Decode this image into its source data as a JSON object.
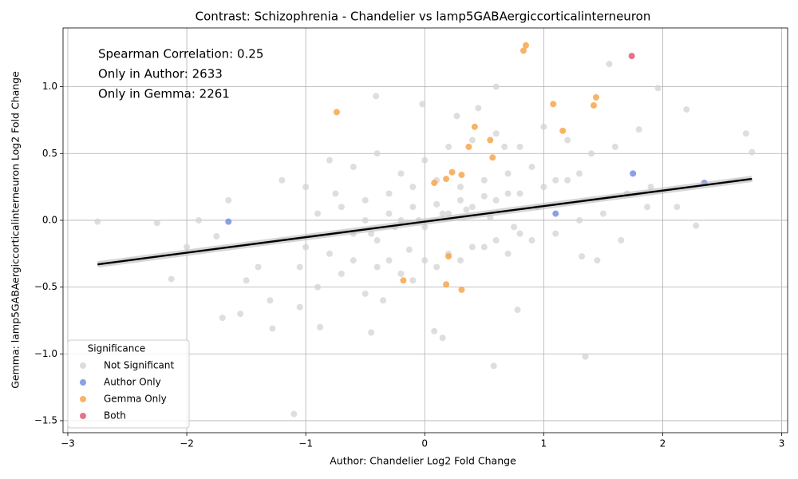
{
  "chart_data": {
    "type": "scatter",
    "title": "Contrast: Schizophrenia - Chandelier vs lamp5GABAergiccorticalinterneuron",
    "x_label": "Author: Chandelier Log2 Fold Change",
    "y_label": "Gemma: lamp5GABAergiccorticalinterneuron Log2 Fold Change",
    "annotations": [
      "Spearman Correlation: 0.25",
      "Only in Author: 2633",
      "Only in Gemma: 2261"
    ],
    "legend_title": "Significance",
    "legend_loc": "lower left",
    "grid": true,
    "xlim": [
      -3.04,
      3.05
    ],
    "ylim": [
      -1.59,
      1.44
    ],
    "xticks": [
      {
        "value": -3,
        "label": "−3"
      },
      {
        "value": -2,
        "label": "−2"
      },
      {
        "value": -1,
        "label": "−1"
      },
      0,
      1,
      2,
      3
    ],
    "yticks": [
      {
        "value": -1.5,
        "label": "−1.5"
      },
      {
        "value": -1,
        "label": "−1.0"
      },
      {
        "value": -0.5,
        "label": "−0.5"
      },
      {
        "value": 0,
        "label": "0.0"
      },
      0.5,
      {
        "value": 1,
        "label": "1.0"
      }
    ],
    "fit": {
      "color": "#000000",
      "x": [
        -2.75,
        2.75
      ],
      "y": [
        -0.33,
        0.31
      ]
    },
    "series": [
      {
        "name": "Not Significant",
        "color": "#d3d3d3",
        "x": [
          -2.75,
          -1.1,
          0.58,
          1.35,
          0.6,
          -0.41,
          1.55,
          1.96,
          2.2,
          2.75,
          2.7,
          -2.13,
          -1.28,
          -0.88,
          2.12,
          -2.25,
          -1.55,
          -1.5,
          -1.75,
          -1.9,
          -2.0,
          -1.65,
          -1.4,
          -1.2,
          -1.0,
          -0.9,
          -0.8,
          -0.7,
          -0.6,
          -0.5,
          -0.4,
          -0.3,
          -0.2,
          -0.1,
          0.0,
          0.1,
          0.2,
          0.3,
          0.4,
          0.5,
          0.6,
          0.7,
          0.8,
          0.9,
          1.0,
          1.1,
          1.2,
          1.3,
          1.4,
          1.5,
          1.6,
          1.7,
          1.8,
          1.9,
          -1.0,
          -0.8,
          -0.6,
          -0.4,
          -0.2,
          0.0,
          0.2,
          0.4,
          0.6,
          0.8,
          1.0,
          1.2,
          -0.9,
          -0.7,
          -0.5,
          -0.3,
          -0.1,
          0.1,
          0.3,
          0.5,
          0.7,
          0.9,
          1.1,
          1.3,
          -0.6,
          -0.4,
          -0.2,
          0.0,
          0.2,
          0.4,
          0.6,
          0.8,
          -0.5,
          -0.3,
          -0.1,
          0.1,
          0.3,
          0.5,
          0.7,
          -0.45,
          -0.25,
          -0.05,
          0.15,
          0.35,
          0.55,
          0.75,
          0.95,
          -0.75,
          -1.05,
          -1.3,
          1.45,
          1.65,
          -0.02,
          0.27,
          -0.45,
          0.08,
          0.45,
          -1.05,
          1.32,
          0.78,
          -0.35,
          0.15,
          -1.7,
          2.28,
          1.87,
          -0.13,
          0.67
        ],
        "y": [
          -0.01,
          -1.45,
          -1.09,
          -1.02,
          1.0,
          0.93,
          1.17,
          0.99,
          0.83,
          0.51,
          0.65,
          -0.44,
          -0.81,
          -0.8,
          0.1,
          -0.02,
          -0.7,
          -0.45,
          -0.12,
          0.0,
          -0.2,
          0.15,
          -0.35,
          0.3,
          0.25,
          -0.5,
          0.45,
          -0.4,
          0.4,
          -0.55,
          0.5,
          -0.3,
          0.35,
          -0.45,
          0.45,
          -0.35,
          0.55,
          -0.3,
          0.6,
          -0.2,
          0.65,
          -0.25,
          0.55,
          -0.15,
          0.7,
          -0.1,
          0.6,
          0.0,
          0.5,
          0.05,
          0.55,
          0.2,
          0.68,
          0.25,
          -0.2,
          -0.25,
          -0.1,
          -0.15,
          0.0,
          -0.05,
          0.05,
          0.1,
          0.15,
          0.2,
          0.25,
          0.3,
          0.05,
          0.1,
          0.15,
          0.2,
          0.25,
          0.3,
          0.25,
          0.3,
          0.35,
          0.4,
          0.3,
          0.35,
          -0.3,
          -0.35,
          -0.4,
          -0.3,
          -0.25,
          -0.2,
          -0.15,
          -0.1,
          0.0,
          0.05,
          0.1,
          0.12,
          0.15,
          0.18,
          0.2,
          -0.1,
          -0.05,
          0.0,
          0.05,
          0.08,
          0.02,
          -0.05,
          0.1,
          0.2,
          -0.35,
          -0.6,
          -0.3,
          -0.15,
          0.87,
          0.78,
          -0.84,
          -0.83,
          0.84,
          -0.65,
          -0.27,
          -0.67,
          -0.6,
          -0.88,
          -0.73,
          -0.04,
          0.1,
          -0.22,
          0.55
        ]
      },
      {
        "name": "Author Only",
        "color": "#6b8ae0",
        "x": [
          -1.65,
          1.1,
          1.75,
          2.35
        ],
        "y": [
          -0.01,
          0.05,
          0.35,
          0.28
        ]
      },
      {
        "name": "Gemma Only",
        "color": "#f5a142",
        "x": [
          0.85,
          0.83,
          -0.74,
          1.08,
          1.44,
          1.42,
          0.42,
          1.16,
          0.55,
          0.37,
          0.57,
          0.23,
          0.31,
          0.08,
          0.18,
          -0.18,
          0.18,
          0.31,
          0.2
        ],
        "y": [
          1.31,
          1.27,
          0.81,
          0.87,
          0.92,
          0.86,
          0.7,
          0.67,
          0.6,
          0.55,
          0.47,
          0.36,
          0.34,
          0.28,
          0.31,
          -0.45,
          -0.48,
          -0.52,
          -0.27
        ]
      },
      {
        "name": "Both",
        "color": "#e0506e",
        "x": [
          1.74
        ],
        "y": [
          1.23
        ]
      }
    ]
  }
}
